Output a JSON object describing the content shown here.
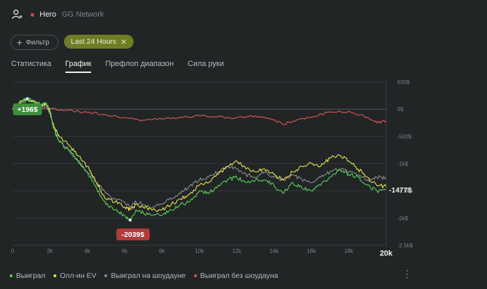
{
  "header": {
    "player_label": "Hero",
    "network": "GG Network",
    "status_color": "#e0454a"
  },
  "filters": {
    "filter_button": "Фильтр",
    "active_chip": "Last 24 Hours"
  },
  "tabs": [
    {
      "label": "Статистика"
    },
    {
      "label": "График"
    },
    {
      "label": "Префлоп диапазон"
    },
    {
      "label": "Сила руки"
    }
  ],
  "active_tab": "График",
  "chart_data": {
    "type": "line",
    "title": "",
    "xlabel": "",
    "ylabel": "",
    "xlim": [
      0,
      20000
    ],
    "ylim": [
      -2500,
      500
    ],
    "x_ticks": [
      "0",
      "2k",
      "4k",
      "6k",
      "8k",
      "10k",
      "12k",
      "14k",
      "16k",
      "18k",
      "20k"
    ],
    "y_ticks": [
      "500$",
      "0$",
      "-500$",
      "-1k$",
      "-1.5k$",
      "-2k$",
      "-2.5k$"
    ],
    "annotations": {
      "max": "+196$",
      "min": "-2039$",
      "last": "-1477$"
    },
    "series": [
      {
        "name": "Выиграл",
        "color": "#59d359",
        "x": [
          0,
          500,
          800,
          1200,
          1500,
          1800,
          2000,
          2200,
          2500,
          3000,
          3500,
          4000,
          4500,
          5000,
          5500,
          6000,
          6300,
          6600,
          7000,
          7500,
          8000,
          8500,
          9000,
          9500,
          10000,
          10500,
          11000,
          11500,
          12000,
          12500,
          13000,
          13500,
          14000,
          14500,
          15000,
          15500,
          16000,
          16500,
          17000,
          17500,
          18000,
          18500,
          19000,
          19500,
          20000
        ],
        "y": [
          0,
          150,
          196,
          150,
          80,
          120,
          -50,
          -350,
          -600,
          -750,
          -950,
          -1150,
          -1450,
          -1750,
          -1850,
          -1950,
          -2039,
          -1850,
          -1900,
          -1950,
          -1950,
          -1850,
          -1750,
          -1700,
          -1500,
          -1550,
          -1400,
          -1300,
          -1250,
          -1350,
          -1300,
          -1300,
          -1400,
          -1550,
          -1350,
          -1450,
          -1500,
          -1400,
          -1250,
          -1100,
          -1200,
          -1250,
          -1400,
          -1500,
          -1477
        ]
      },
      {
        "name": "Олл-ин EV",
        "color": "#e7e84a",
        "x": [
          0,
          500,
          800,
          1200,
          1500,
          1800,
          2000,
          2200,
          2500,
          3000,
          3500,
          4000,
          4500,
          5000,
          5500,
          6000,
          6300,
          6600,
          7000,
          7500,
          8000,
          8500,
          9000,
          9500,
          10000,
          10500,
          11000,
          11500,
          12000,
          12500,
          13000,
          13500,
          14000,
          14500,
          15000,
          15500,
          16000,
          16500,
          17000,
          17500,
          18000,
          18500,
          19000,
          19500,
          20000
        ],
        "y": [
          0,
          140,
          180,
          130,
          70,
          110,
          -30,
          -300,
          -500,
          -650,
          -850,
          -1050,
          -1350,
          -1650,
          -1700,
          -1800,
          -1850,
          -1750,
          -1800,
          -1850,
          -1850,
          -1750,
          -1650,
          -1550,
          -1400,
          -1350,
          -1200,
          -1050,
          -950,
          -1100,
          -1150,
          -1100,
          -1200,
          -1300,
          -1150,
          -1050,
          -1000,
          -1050,
          -900,
          -850,
          -950,
          -1100,
          -1250,
          -1400,
          -1420
        ]
      },
      {
        "name": "Выиграл на шоудауне",
        "color": "#8b8e90",
        "x": [
          0,
          500,
          800,
          1200,
          1500,
          1800,
          2000,
          2200,
          2500,
          3000,
          3500,
          4000,
          4500,
          5000,
          5500,
          6000,
          6300,
          6600,
          7000,
          7500,
          8000,
          8500,
          9000,
          9500,
          10000,
          10500,
          11000,
          11500,
          12000,
          12500,
          13000,
          13500,
          14000,
          14500,
          15000,
          15500,
          16000,
          16500,
          17000,
          17500,
          18000,
          18500,
          19000,
          19500,
          20000
        ],
        "y": [
          0,
          120,
          170,
          110,
          60,
          80,
          -80,
          -350,
          -600,
          -750,
          -950,
          -1150,
          -1350,
          -1550,
          -1650,
          -1700,
          -1800,
          -1700,
          -1750,
          -1800,
          -1750,
          -1650,
          -1550,
          -1400,
          -1300,
          -1250,
          -1150,
          -1050,
          -1100,
          -1200,
          -1250,
          -1150,
          -1250,
          -1300,
          -1200,
          -1300,
          -1350,
          -1250,
          -1150,
          -1100,
          -1150,
          -1200,
          -1300,
          -1250,
          -1260
        ]
      },
      {
        "name": "Выиграл без шоудауна",
        "color": "#e05858",
        "x": [
          0,
          1000,
          2000,
          3000,
          4000,
          5000,
          6000,
          7000,
          8000,
          9000,
          10000,
          11000,
          12000,
          13000,
          14000,
          14500,
          15000,
          16000,
          17000,
          18000,
          19000,
          19500,
          20000
        ],
        "y": [
          0,
          30,
          10,
          -20,
          -60,
          -100,
          -150,
          -200,
          -180,
          -150,
          -120,
          -140,
          -160,
          -120,
          -200,
          -280,
          -220,
          -150,
          -50,
          -40,
          -150,
          -250,
          -220
        ]
      }
    ]
  },
  "legend_menu": "⋮"
}
